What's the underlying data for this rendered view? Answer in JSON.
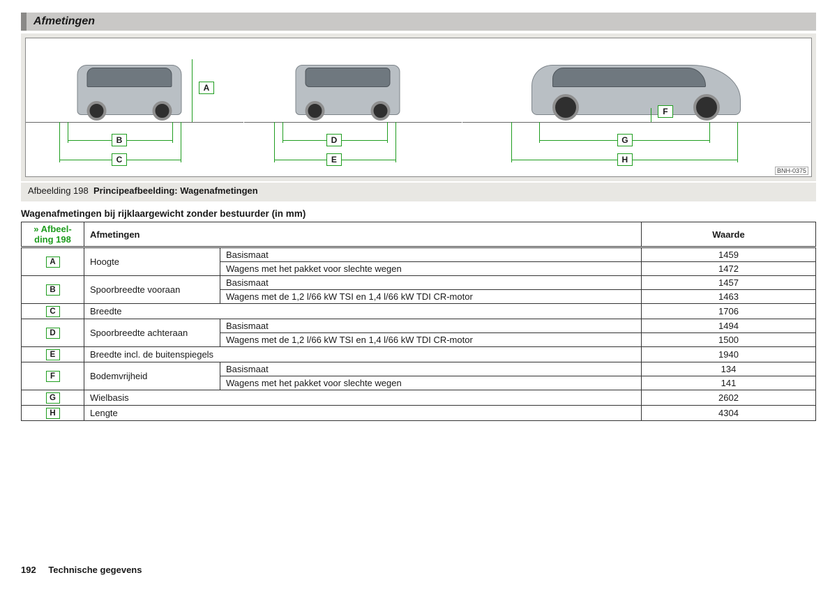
{
  "colors": {
    "accent_green": "#1f9d1f",
    "header_bg": "#c9c8c6",
    "header_bar": "#8a8987",
    "figure_bg": "#e8e7e3",
    "car_body": "#b9bfc4",
    "car_window": "#6f787f",
    "border": "#333333"
  },
  "section_title": "Afmetingen",
  "figure": {
    "code": "BNH-0375",
    "caption_prefix": "Afbeelding 198",
    "caption_text": "Principeafbeelding: Wagenafmetingen",
    "labels": {
      "A": "A",
      "B": "B",
      "C": "C",
      "D": "D",
      "E": "E",
      "F": "F",
      "G": "G",
      "H": "H"
    }
  },
  "subheading": "Wagenafmetingen bij rijklaargewicht zonder bestuurder (in mm)",
  "table": {
    "ref_link": "» Afbeel-\nding 198",
    "headers": {
      "dim": "Afmetingen",
      "val": "Waarde"
    },
    "labels": {
      "basis": "Basismaat",
      "slecht": "Wagens met het pakket voor slechte wegen",
      "motor": "Wagens met de 1,2 l/66 kW TSI en 1,4 l/66 kW TDI CR-motor"
    },
    "rows": [
      {
        "ref": "A",
        "dim": "Hoogte",
        "subs": [
          {
            "label_key": "basis",
            "value": "1459"
          },
          {
            "label_key": "slecht",
            "value": "1472"
          }
        ]
      },
      {
        "ref": "B",
        "dim": "Spoorbreedte vooraan",
        "subs": [
          {
            "label_key": "basis",
            "value": "1457"
          },
          {
            "label_key": "motor",
            "value": "1463"
          }
        ]
      },
      {
        "ref": "C",
        "dim": "Breedte",
        "value": "1706"
      },
      {
        "ref": "D",
        "dim": "Spoorbreedte achteraan",
        "subs": [
          {
            "label_key": "basis",
            "value": "1494"
          },
          {
            "label_key": "motor",
            "value": "1500"
          }
        ]
      },
      {
        "ref": "E",
        "dim": "Breedte incl. de buitenspiegels",
        "value": "1940"
      },
      {
        "ref": "F",
        "dim": "Bodemvrijheid",
        "subs": [
          {
            "label_key": "basis",
            "value": "134"
          },
          {
            "label_key": "slecht",
            "value": "141"
          }
        ]
      },
      {
        "ref": "G",
        "dim": "Wielbasis",
        "value": "2602"
      },
      {
        "ref": "H",
        "dim": "Lengte",
        "value": "4304"
      }
    ]
  },
  "footer": {
    "page_number": "192",
    "section": "Technische gegevens"
  }
}
